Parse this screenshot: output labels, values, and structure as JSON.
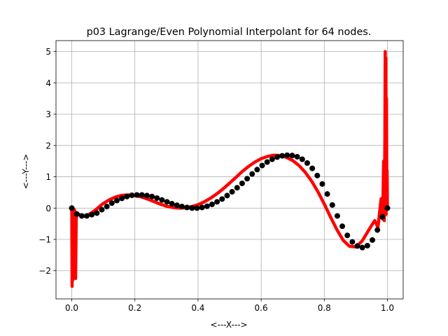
{
  "chart_data": {
    "type": "line",
    "title": "p03 Lagrange/Even Polynomial Interpolant for 64 nodes.",
    "xlabel": "<---X--->",
    "ylabel": "<---Y--->",
    "xlim": [
      -0.05,
      1.05
    ],
    "ylim": [
      -2.9,
      5.35
    ],
    "grid": true,
    "x_ticks": [
      0.0,
      0.2,
      0.4,
      0.6,
      0.8,
      1.0
    ],
    "x_tick_labels": [
      "0.0",
      "0.2",
      "0.4",
      "0.6",
      "0.8",
      "1.0"
    ],
    "y_ticks": [
      -2,
      -1,
      0,
      1,
      2,
      3,
      4,
      5
    ],
    "y_tick_labels": [
      "−2",
      "−1",
      "0",
      "1",
      "2",
      "3",
      "4",
      "5"
    ],
    "series": [
      {
        "kind": "line",
        "color": "#ff0000",
        "x": [
          0.0,
          0.001,
          0.002,
          0.003,
          0.004,
          0.005,
          0.006,
          0.007,
          0.008,
          0.009,
          0.01,
          0.012,
          0.014,
          0.016,
          0.02,
          0.03,
          0.04,
          0.05,
          0.06,
          0.07,
          0.08,
          0.09,
          0.1,
          0.12,
          0.14,
          0.16,
          0.18,
          0.2,
          0.22,
          0.24,
          0.26,
          0.28,
          0.3,
          0.32,
          0.34,
          0.36,
          0.38,
          0.4,
          0.42,
          0.44,
          0.46,
          0.48,
          0.5,
          0.52,
          0.54,
          0.56,
          0.58,
          0.6,
          0.62,
          0.64,
          0.66,
          0.68,
          0.7,
          0.72,
          0.74,
          0.76,
          0.78,
          0.8,
          0.82,
          0.84,
          0.86,
          0.88,
          0.9,
          0.92,
          0.935,
          0.95,
          0.96,
          0.97,
          0.98,
          0.985,
          0.988,
          0.99,
          0.992,
          0.993,
          0.994,
          0.995,
          0.996,
          0.997,
          0.998,
          0.999,
          1.0
        ],
        "y": [
          0.0,
          -2.5,
          0.0,
          -2.3,
          -0.3,
          -2.1,
          -0.2,
          -1.6,
          -0.05,
          -0.8,
          -0.1,
          -2.25,
          -0.4,
          -0.15,
          -0.18,
          -0.25,
          -0.26,
          -0.22,
          -0.17,
          -0.1,
          -0.02,
          0.07,
          0.15,
          0.27,
          0.36,
          0.41,
          0.42,
          0.4,
          0.36,
          0.29,
          0.21,
          0.13,
          0.06,
          0.02,
          0.0,
          0.01,
          0.05,
          0.11,
          0.2,
          0.32,
          0.46,
          0.62,
          0.8,
          0.98,
          1.17,
          1.33,
          1.47,
          1.58,
          1.65,
          1.69,
          1.68,
          1.62,
          1.52,
          1.36,
          1.14,
          0.86,
          0.52,
          0.13,
          -0.29,
          -0.69,
          -1.03,
          -1.22,
          -1.24,
          -1.05,
          -0.8,
          -0.55,
          -0.4,
          -0.62,
          0.3,
          -0.35,
          1.5,
          -0.4,
          2.2,
          5.0,
          0.8,
          4.8,
          -0.2,
          3.5,
          0.9,
          1.2,
          0.0
        ]
      },
      {
        "kind": "markers",
        "color": "#000000",
        "x": [
          0.0,
          0.0159,
          0.0317,
          0.0476,
          0.0635,
          0.0794,
          0.0952,
          0.1111,
          0.127,
          0.1429,
          0.1587,
          0.1746,
          0.1905,
          0.2063,
          0.2222,
          0.2381,
          0.254,
          0.2698,
          0.2857,
          0.3016,
          0.3175,
          0.3333,
          0.3492,
          0.3651,
          0.381,
          0.3968,
          0.4127,
          0.4286,
          0.4444,
          0.4603,
          0.4762,
          0.4921,
          0.5079,
          0.5238,
          0.5397,
          0.5556,
          0.5714,
          0.5873,
          0.6032,
          0.619,
          0.6349,
          0.6508,
          0.6667,
          0.6825,
          0.6984,
          0.7143,
          0.7302,
          0.746,
          0.7619,
          0.7778,
          0.7937,
          0.8095,
          0.8254,
          0.8413,
          0.8571,
          0.873,
          0.8889,
          0.9048,
          0.9206,
          0.9365,
          0.9524,
          0.9683,
          0.9841,
          1.0
        ],
        "y": [
          0.0,
          -0.19,
          -0.25,
          -0.25,
          -0.21,
          -0.16,
          -0.05,
          0.05,
          0.16,
          0.24,
          0.31,
          0.37,
          0.41,
          0.42,
          0.42,
          0.4,
          0.37,
          0.32,
          0.26,
          0.2,
          0.14,
          0.09,
          0.05,
          0.02,
          0.0,
          0.0,
          0.02,
          0.06,
          0.12,
          0.2,
          0.29,
          0.4,
          0.52,
          0.65,
          0.79,
          0.94,
          1.09,
          1.23,
          1.36,
          1.47,
          1.56,
          1.63,
          1.67,
          1.69,
          1.68,
          1.64,
          1.56,
          1.44,
          1.27,
          1.04,
          0.77,
          0.45,
          0.1,
          -0.25,
          -0.58,
          -0.87,
          -1.08,
          -1.21,
          -1.26,
          -1.2,
          -1.02,
          -0.7,
          -0.28,
          0.0
        ]
      }
    ]
  }
}
